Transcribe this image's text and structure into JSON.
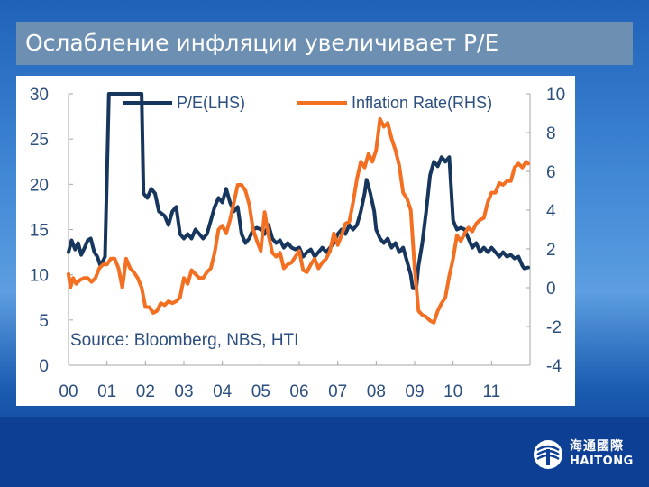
{
  "slide": {
    "title": "Ослабление инфляции увеличивает P/E"
  },
  "logo": {
    "name_cn": "海通國際",
    "name_en": "HAITONG"
  },
  "chart_data": {
    "type": "line",
    "source_note": "Source: Bloomberg, NBS, HTI",
    "x_ticks": [
      "00",
      "01",
      "02",
      "03",
      "04",
      "05",
      "06",
      "07",
      "08",
      "09",
      "10",
      "11"
    ],
    "xlim": [
      2000.0,
      2012.0
    ],
    "y_left": {
      "ticks": [
        "30",
        "25",
        "20",
        "15",
        "10",
        "5",
        "0"
      ],
      "lim": [
        0,
        30
      ]
    },
    "y_right": {
      "ticks": [
        "10",
        "8",
        "6",
        "4",
        "2",
        "0",
        "-2",
        "-4"
      ],
      "lim": [
        -4,
        10
      ]
    },
    "grid": false,
    "legend_position": "top",
    "series": [
      {
        "name": "P/E(LHS)",
        "axis": "left",
        "color": "#17365d",
        "points": [
          [
            2000.0,
            12.5
          ],
          [
            2000.08,
            13.8
          ],
          [
            2000.17,
            12.8
          ],
          [
            2000.25,
            13.5
          ],
          [
            2000.33,
            12.2
          ],
          [
            2000.42,
            13.0
          ],
          [
            2000.5,
            13.8
          ],
          [
            2000.58,
            14.0
          ],
          [
            2000.67,
            12.5
          ],
          [
            2000.75,
            12.0
          ],
          [
            2000.83,
            11.0
          ],
          [
            2000.95,
            12.0
          ],
          [
            2001.05,
            30.0
          ],
          [
            2001.1,
            30.0
          ],
          [
            2001.15,
            30.0
          ],
          [
            2001.2,
            30.0
          ],
          [
            2001.3,
            30.0
          ],
          [
            2001.4,
            30.0
          ],
          [
            2001.5,
            30.0
          ],
          [
            2001.6,
            30.0
          ],
          [
            2001.7,
            30.0
          ],
          [
            2001.8,
            30.0
          ],
          [
            2001.85,
            30.0
          ],
          [
            2001.9,
            30.0
          ],
          [
            2001.95,
            19.0
          ],
          [
            2002.05,
            18.5
          ],
          [
            2002.15,
            19.5
          ],
          [
            2002.25,
            19.0
          ],
          [
            2002.35,
            17.0
          ],
          [
            2002.5,
            16.5
          ],
          [
            2002.6,
            15.5
          ],
          [
            2002.7,
            17.0
          ],
          [
            2002.8,
            17.5
          ],
          [
            2002.9,
            14.5
          ],
          [
            2003.0,
            14.0
          ],
          [
            2003.1,
            14.5
          ],
          [
            2003.2,
            14.0
          ],
          [
            2003.3,
            15.0
          ],
          [
            2003.4,
            14.5
          ],
          [
            2003.5,
            14.0
          ],
          [
            2003.6,
            14.5
          ],
          [
            2003.7,
            16.0
          ],
          [
            2003.8,
            17.5
          ],
          [
            2003.9,
            18.5
          ],
          [
            2004.0,
            18.0
          ],
          [
            2004.1,
            19.5
          ],
          [
            2004.2,
            18.0
          ],
          [
            2004.3,
            17.0
          ],
          [
            2004.4,
            17.5
          ],
          [
            2004.5,
            14.5
          ],
          [
            2004.6,
            13.5
          ],
          [
            2004.7,
            14.0
          ],
          [
            2004.8,
            15.0
          ],
          [
            2004.9,
            15.2
          ],
          [
            2005.0,
            15.0
          ],
          [
            2005.1,
            14.5
          ],
          [
            2005.2,
            15.5
          ],
          [
            2005.3,
            14.0
          ],
          [
            2005.4,
            13.5
          ],
          [
            2005.5,
            13.8
          ],
          [
            2005.6,
            13.0
          ],
          [
            2005.7,
            13.5
          ],
          [
            2005.8,
            13.0
          ],
          [
            2005.9,
            12.8
          ],
          [
            2006.0,
            13.0
          ],
          [
            2006.1,
            12.0
          ],
          [
            2006.2,
            12.5
          ],
          [
            2006.3,
            12.8
          ],
          [
            2006.4,
            12.0
          ],
          [
            2006.5,
            12.5
          ],
          [
            2006.6,
            13.0
          ],
          [
            2006.7,
            12.5
          ],
          [
            2006.8,
            13.0
          ],
          [
            2006.9,
            13.5
          ],
          [
            2007.0,
            14.5
          ],
          [
            2007.1,
            15.0
          ],
          [
            2007.2,
            14.5
          ],
          [
            2007.3,
            15.5
          ],
          [
            2007.4,
            15.0
          ],
          [
            2007.5,
            15.5
          ],
          [
            2007.6,
            17.0
          ],
          [
            2007.7,
            19.0
          ],
          [
            2007.75,
            20.5
          ],
          [
            2007.85,
            19.0
          ],
          [
            2007.95,
            17.0
          ],
          [
            2008.0,
            15.0
          ],
          [
            2008.1,
            14.0
          ],
          [
            2008.2,
            13.5
          ],
          [
            2008.3,
            14.0
          ],
          [
            2008.4,
            13.0
          ],
          [
            2008.5,
            13.5
          ],
          [
            2008.6,
            12.5
          ],
          [
            2008.7,
            13.0
          ],
          [
            2008.8,
            11.5
          ],
          [
            2008.9,
            10.0
          ],
          [
            2008.95,
            8.5
          ],
          [
            2009.0,
            8.5
          ],
          [
            2009.05,
            8.8
          ],
          [
            2009.1,
            11.0
          ],
          [
            2009.2,
            13.5
          ],
          [
            2009.3,
            17.0
          ],
          [
            2009.4,
            21.0
          ],
          [
            2009.5,
            22.5
          ],
          [
            2009.6,
            22.0
          ],
          [
            2009.7,
            23.0
          ],
          [
            2009.8,
            22.5
          ],
          [
            2009.9,
            23.0
          ],
          [
            2010.0,
            16.0
          ],
          [
            2010.1,
            15.0
          ],
          [
            2010.2,
            15.2
          ],
          [
            2010.3,
            15.0
          ],
          [
            2010.4,
            14.0
          ],
          [
            2010.5,
            13.0
          ],
          [
            2010.6,
            13.5
          ],
          [
            2010.7,
            12.5
          ],
          [
            2010.8,
            13.0
          ],
          [
            2010.9,
            12.5
          ],
          [
            2011.0,
            13.0
          ],
          [
            2011.1,
            12.5
          ],
          [
            2011.2,
            12.0
          ],
          [
            2011.3,
            12.5
          ],
          [
            2011.4,
            12.0
          ],
          [
            2011.5,
            12.2
          ],
          [
            2011.6,
            11.8
          ],
          [
            2011.7,
            12.0
          ],
          [
            2011.8,
            11.0
          ],
          [
            2011.85,
            10.7
          ],
          [
            2011.95,
            10.8
          ]
        ]
      },
      {
        "name": "Inflation Rate(RHS)",
        "axis": "right",
        "color": "#f36f21",
        "points": [
          [
            2000.0,
            0.7
          ],
          [
            2000.05,
            0.0
          ],
          [
            2000.12,
            0.5
          ],
          [
            2000.2,
            0.2
          ],
          [
            2000.3,
            0.4
          ],
          [
            2000.4,
            0.5
          ],
          [
            2000.5,
            0.5
          ],
          [
            2000.6,
            0.3
          ],
          [
            2000.7,
            0.5
          ],
          [
            2000.8,
            1.0
          ],
          [
            2000.9,
            1.2
          ],
          [
            2001.0,
            1.2
          ],
          [
            2001.1,
            1.5
          ],
          [
            2001.2,
            1.5
          ],
          [
            2001.3,
            1.0
          ],
          [
            2001.4,
            0.0
          ],
          [
            2001.5,
            1.5
          ],
          [
            2001.6,
            1.0
          ],
          [
            2001.7,
            0.8
          ],
          [
            2001.8,
            0.5
          ],
          [
            2001.9,
            0.0
          ],
          [
            2002.0,
            -1.0
          ],
          [
            2002.1,
            -1.0
          ],
          [
            2002.2,
            -1.3
          ],
          [
            2002.3,
            -1.2
          ],
          [
            2002.4,
            -0.8
          ],
          [
            2002.5,
            -0.9
          ],
          [
            2002.6,
            -0.7
          ],
          [
            2002.7,
            -0.8
          ],
          [
            2002.8,
            -0.7
          ],
          [
            2002.9,
            -0.5
          ],
          [
            2003.0,
            0.5
          ],
          [
            2003.1,
            0.2
          ],
          [
            2003.2,
            0.9
          ],
          [
            2003.3,
            0.7
          ],
          [
            2003.4,
            0.5
          ],
          [
            2003.5,
            0.5
          ],
          [
            2003.6,
            0.8
          ],
          [
            2003.7,
            1.0
          ],
          [
            2003.8,
            1.8
          ],
          [
            2003.9,
            3.0
          ],
          [
            2004.0,
            3.2
          ],
          [
            2004.1,
            2.8
          ],
          [
            2004.2,
            3.5
          ],
          [
            2004.3,
            4.4
          ],
          [
            2004.4,
            5.3
          ],
          [
            2004.5,
            5.3
          ],
          [
            2004.6,
            5.0
          ],
          [
            2004.7,
            4.3
          ],
          [
            2004.8,
            3.0
          ],
          [
            2004.9,
            2.4
          ],
          [
            2005.0,
            1.9
          ],
          [
            2005.1,
            3.9
          ],
          [
            2005.2,
            2.7
          ],
          [
            2005.3,
            1.8
          ],
          [
            2005.4,
            1.6
          ],
          [
            2005.5,
            1.8
          ],
          [
            2005.6,
            1.0
          ],
          [
            2005.7,
            1.2
          ],
          [
            2005.8,
            1.3
          ],
          [
            2005.9,
            1.6
          ],
          [
            2006.0,
            1.9
          ],
          [
            2006.1,
            0.9
          ],
          [
            2006.2,
            0.8
          ],
          [
            2006.3,
            1.2
          ],
          [
            2006.4,
            1.5
          ],
          [
            2006.5,
            1.0
          ],
          [
            2006.6,
            1.3
          ],
          [
            2006.7,
            1.5
          ],
          [
            2006.8,
            1.9
          ],
          [
            2006.9,
            2.8
          ],
          [
            2007.0,
            2.2
          ],
          [
            2007.1,
            2.7
          ],
          [
            2007.2,
            3.3
          ],
          [
            2007.3,
            3.4
          ],
          [
            2007.4,
            4.4
          ],
          [
            2007.5,
            5.6
          ],
          [
            2007.6,
            6.5
          ],
          [
            2007.7,
            6.2
          ],
          [
            2007.8,
            6.9
          ],
          [
            2007.9,
            6.5
          ],
          [
            2008.0,
            7.1
          ],
          [
            2008.1,
            8.7
          ],
          [
            2008.2,
            8.3
          ],
          [
            2008.3,
            8.5
          ],
          [
            2008.4,
            7.7
          ],
          [
            2008.5,
            7.1
          ],
          [
            2008.6,
            6.3
          ],
          [
            2008.7,
            4.9
          ],
          [
            2008.8,
            4.6
          ],
          [
            2008.9,
            4.0
          ],
          [
            2009.0,
            1.0
          ],
          [
            2009.1,
            -1.2
          ],
          [
            2009.2,
            -1.4
          ],
          [
            2009.3,
            -1.5
          ],
          [
            2009.4,
            -1.7
          ],
          [
            2009.5,
            -1.8
          ],
          [
            2009.6,
            -1.2
          ],
          [
            2009.7,
            -0.8
          ],
          [
            2009.8,
            -0.5
          ],
          [
            2009.9,
            0.6
          ],
          [
            2010.0,
            1.5
          ],
          [
            2010.1,
            2.7
          ],
          [
            2010.2,
            2.4
          ],
          [
            2010.3,
            2.8
          ],
          [
            2010.4,
            3.1
          ],
          [
            2010.5,
            2.9
          ],
          [
            2010.6,
            3.3
          ],
          [
            2010.7,
            3.5
          ],
          [
            2010.8,
            3.6
          ],
          [
            2010.9,
            4.4
          ],
          [
            2011.0,
            4.9
          ],
          [
            2011.1,
            4.9
          ],
          [
            2011.2,
            5.4
          ],
          [
            2011.3,
            5.3
          ],
          [
            2011.4,
            5.5
          ],
          [
            2011.5,
            5.5
          ],
          [
            2011.6,
            6.2
          ],
          [
            2011.7,
            6.4
          ],
          [
            2011.8,
            6.2
          ],
          [
            2011.9,
            6.5
          ],
          [
            2011.95,
            6.4
          ]
        ]
      }
    ]
  }
}
